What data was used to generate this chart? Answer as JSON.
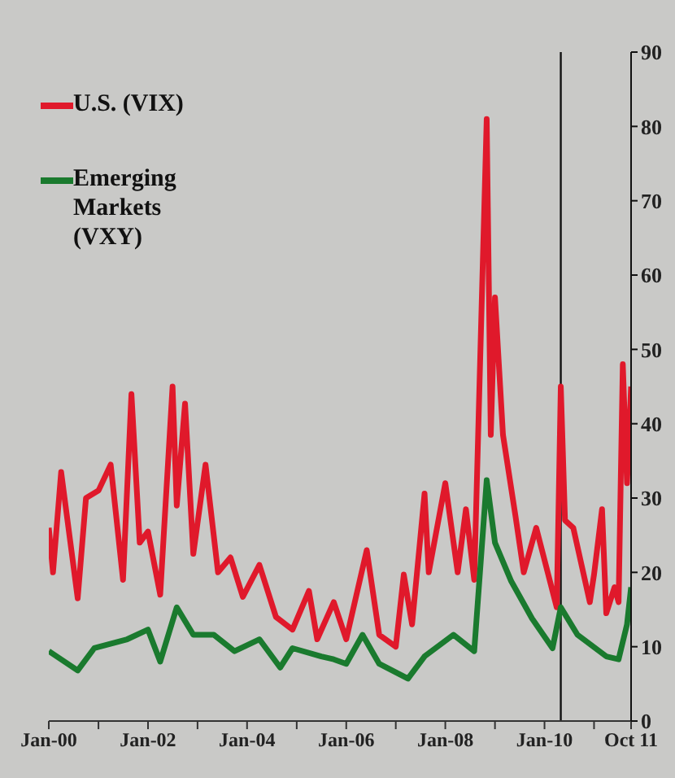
{
  "chart_data": {
    "type": "line",
    "x": [
      "2000-01",
      "2000-02",
      "2000-04",
      "2000-08",
      "2000-10",
      "2001-01",
      "2001-04",
      "2001-07",
      "2001-09",
      "2001-11",
      "2002-01",
      "2002-04",
      "2002-07",
      "2002-08",
      "2002-10",
      "2002-12",
      "2003-03",
      "2003-06",
      "2003-09",
      "2003-12",
      "2004-04",
      "2004-08",
      "2004-12",
      "2005-04",
      "2005-06",
      "2005-10",
      "2006-01",
      "2006-06",
      "2006-09",
      "2007-01",
      "2007-03",
      "2007-05",
      "2007-08",
      "2007-09",
      "2008-01",
      "2008-04",
      "2008-06",
      "2008-08",
      "2008-11",
      "2008-12",
      "2009-01",
      "2009-03",
      "2009-06",
      "2009-08",
      "2009-11",
      "2010-04",
      "2010-05",
      "2010-06",
      "2010-08",
      "2010-10",
      "2010-12",
      "2011-01",
      "2011-03",
      "2011-04",
      "2011-06",
      "2011-07",
      "2011-08",
      "2011-09",
      "2011-10"
    ],
    "series": [
      {
        "name": "U.S. (VIX)",
        "color": "#e0192b",
        "values": [
          26,
          20,
          33.5,
          16.5,
          30,
          31,
          34.5,
          19,
          44,
          24,
          25.5,
          17,
          45,
          29,
          42.7,
          22.5,
          34.5,
          20,
          22,
          16.7,
          21,
          14,
          12.3,
          17.5,
          11,
          16,
          11,
          23,
          11.6,
          10,
          19.7,
          13,
          30.6,
          20,
          32,
          20,
          28.5,
          19,
          81,
          38.5,
          57,
          38.5,
          27.6,
          20,
          26,
          15.3,
          45,
          27,
          26,
          21,
          16,
          19.7,
          28.5,
          14.5,
          18,
          16,
          48,
          32,
          45
        ]
      },
      {
        "name": "Emerging Markets (VXY)",
        "color": "#1a7a2e",
        "x": [
          "2000-01",
          "2000-08",
          "2000-12",
          "2001-08",
          "2002-01",
          "2002-04",
          "2002-08",
          "2002-12",
          "2003-05",
          "2003-10",
          "2004-04",
          "2004-09",
          "2004-12",
          "2005-07",
          "2005-10",
          "2006-01",
          "2006-05",
          "2006-09",
          "2007-04",
          "2007-08",
          "2008-03",
          "2008-08",
          "2008-11",
          "2009-01",
          "2009-05",
          "2009-10",
          "2010-03",
          "2010-05",
          "2010-09",
          "2011-04",
          "2011-07",
          "2011-09",
          "2011-10"
        ],
        "values": [
          9.4,
          6.8,
          9.8,
          11,
          12.3,
          8,
          15.3,
          11.6,
          11.6,
          9.4,
          11,
          7.2,
          9.8,
          8.7,
          8.3,
          7.7,
          11.6,
          7.7,
          5.7,
          8.7,
          11.6,
          9.4,
          32.4,
          24,
          18.8,
          13.8,
          9.8,
          15.3,
          11.6,
          8.7,
          8.3,
          13,
          18
        ]
      }
    ],
    "xlim": [
      "2000-01",
      "2011-10"
    ],
    "xticks": [
      {
        "value": "2000-01",
        "label": "Jan-00"
      },
      {
        "value": "2001-01",
        "label": null
      },
      {
        "value": "2002-01",
        "label": "Jan-02"
      },
      {
        "value": "2003-01",
        "label": null
      },
      {
        "value": "2004-01",
        "label": "Jan-04"
      },
      {
        "value": "2005-01",
        "label": null
      },
      {
        "value": "2006-01",
        "label": "Jan-06"
      },
      {
        "value": "2007-01",
        "label": null
      },
      {
        "value": "2008-01",
        "label": "Jan-08"
      },
      {
        "value": "2009-01",
        "label": null
      },
      {
        "value": "2010-01",
        "label": "Jan-10"
      },
      {
        "value": "2011-01",
        "label": null
      },
      {
        "value": "2011-10",
        "label": "Oct 11"
      }
    ],
    "ylim": [
      0,
      90
    ],
    "yticks": [
      0,
      10,
      20,
      30,
      40,
      50,
      60,
      70,
      80,
      90
    ],
    "ref_lines": [
      {
        "axis": "x",
        "value": "2010-05",
        "color": "#111111"
      }
    ],
    "legend": "top left",
    "marker": "none",
    "line_style": "solid"
  }
}
